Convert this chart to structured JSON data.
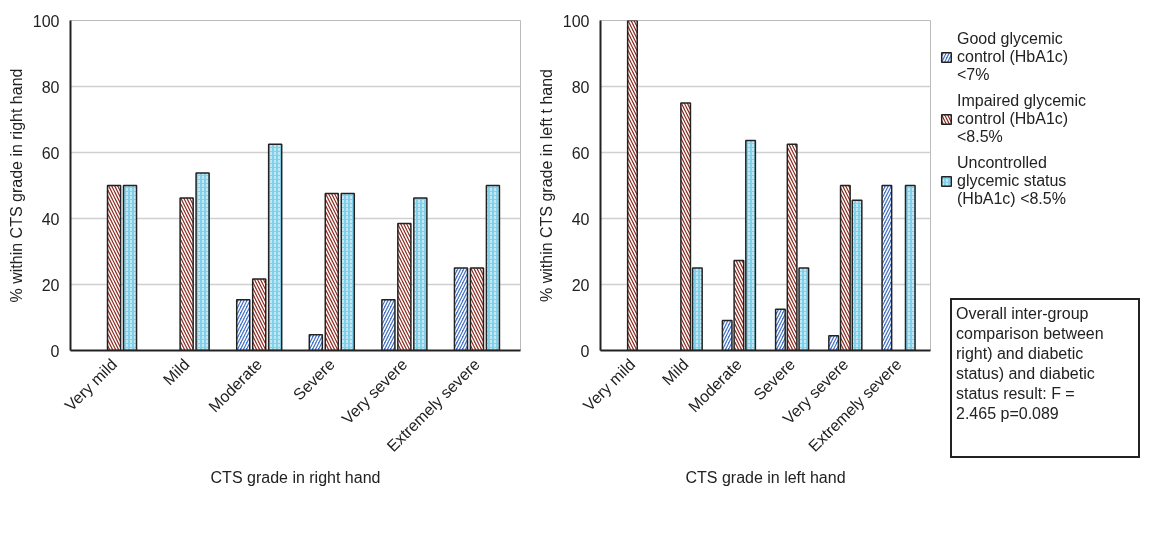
{
  "chart_data": [
    {
      "type": "bar",
      "xlabel": "CTS grade in right hand",
      "ylabel": "% within CTS grade in right hand",
      "categories": [
        "Very mild",
        "Mild",
        "Moderate",
        "Severe",
        "Very severe",
        "Extremely severe"
      ],
      "ylim": [
        0,
        100
      ],
      "yticks": [
        0,
        20,
        40,
        60,
        80,
        100
      ],
      "grid": "y",
      "legend": false,
      "series": [
        {
          "color": "#4472c4",
          "values": [
            null,
            null,
            15.4,
            4.8,
            15.4,
            25
          ]
        },
        {
          "color": "#8b2a1e",
          "values": [
            50,
            46.2,
            21.7,
            47.6,
            38.5,
            25
          ]
        },
        {
          "color": "#7fd0ea",
          "values": [
            50,
            53.8,
            62.5,
            47.6,
            46.2,
            50
          ]
        }
      ]
    },
    {
      "type": "bar",
      "xlabel": "CTS grade in left hand",
      "ylabel": "% within CTS grade in left t hand",
      "categories": [
        "Very mild",
        "Mild",
        "Moderate",
        "Severe",
        "Very severe",
        "Extremely severe"
      ],
      "ylim": [
        0,
        100
      ],
      "yticks": [
        0,
        20,
        40,
        60,
        80,
        100
      ],
      "grid": "y",
      "legend": "right",
      "annotations": [
        "Overall inter-group comparison between right) and diabetic status) and diabetic status result: F = 2.465 p=0.089"
      ],
      "series": [
        {
          "name": "Good glycemic control (HbA1c) <7%",
          "color": "#4472c4",
          "values": [
            null,
            null,
            9.1,
            12.5,
            4.5,
            50
          ]
        },
        {
          "name": "Impaired glycemic control (HbA1c) <8.5%",
          "color": "#8b2a1e",
          "values": [
            100,
            75,
            27.3,
            62.5,
            50,
            null
          ]
        },
        {
          "name": "Uncontrolled glycemic status (HbA1c) <8.5%",
          "color": "#7fd0ea",
          "values": [
            null,
            25,
            63.6,
            25,
            45.5,
            50
          ]
        }
      ]
    }
  ]
}
